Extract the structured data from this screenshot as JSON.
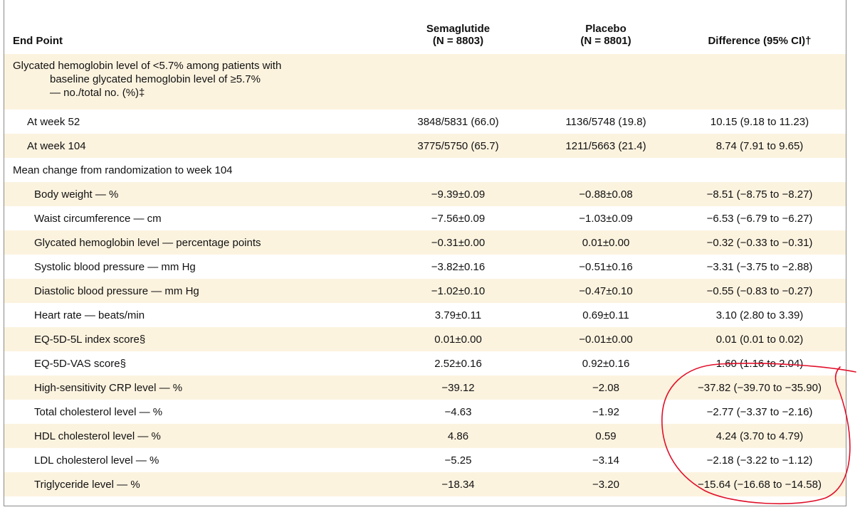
{
  "header": {
    "end_point": "End Point",
    "semaglutide": "Semaglutide",
    "semaglutide_n": "(N = 8803)",
    "placebo": "Placebo",
    "placebo_n": "(N = 8801)",
    "difference": "Difference (95% CI)†"
  },
  "section1": {
    "line1": "Glycated hemoglobin level of <5.7% among patients with",
    "line2": "baseline glycated hemoglobin level of ≥5.7%",
    "line3": "— no./total no. (%)‡",
    "rows": [
      {
        "label": "At week 52",
        "semaglutide": "3848/5831 (66.0)",
        "placebo": "1136/5748 (19.8)",
        "difference": "10.15 (9.18 to 11.23)"
      },
      {
        "label": "At week 104",
        "semaglutide": "3775/5750 (65.7)",
        "placebo": "1211/5663 (21.4)",
        "difference": "8.74 (7.91 to 9.65)"
      }
    ]
  },
  "section2": {
    "title": "Mean change from randomization to week 104",
    "rows": [
      {
        "label": "Body weight — %",
        "semaglutide": "−9.39±0.09",
        "placebo": "−0.88±0.08",
        "difference": "−8.51 (−8.75 to −8.27)"
      },
      {
        "label": "Waist circumference — cm",
        "semaglutide": "−7.56±0.09",
        "placebo": "−1.03±0.09",
        "difference": "−6.53 (−6.79 to −6.27)"
      },
      {
        "label": "Glycated hemoglobin level — percentage points",
        "semaglutide": "−0.31±0.00",
        "placebo": "0.01±0.00",
        "difference": "−0.32 (−0.33 to −0.31)"
      },
      {
        "label": "Systolic blood pressure — mm Hg",
        "semaglutide": "−3.82±0.16",
        "placebo": "−0.51±0.16",
        "difference": "−3.31 (−3.75 to −2.88)"
      },
      {
        "label": "Diastolic blood pressure — mm Hg",
        "semaglutide": "−1.02±0.10",
        "placebo": "−0.47±0.10",
        "difference": "−0.55 (−0.83 to −0.27)"
      },
      {
        "label": "Heart rate — beats/min",
        "semaglutide": "3.79±0.11",
        "placebo": "0.69±0.11",
        "difference": "3.10 (2.80 to 3.39)"
      },
      {
        "label": "EQ-5D-5L index score§",
        "semaglutide": "0.01±0.00",
        "placebo": "−0.01±0.00",
        "difference": "0.01 (0.01 to 0.02)"
      },
      {
        "label": "EQ-5D-VAS score§",
        "semaglutide": "2.52±0.16",
        "placebo": "0.92±0.16",
        "difference": "1.60 (1.16 to 2.04)"
      },
      {
        "label": "High-sensitivity CRP level — %",
        "semaglutide": "−39.12",
        "placebo": "−2.08",
        "difference": "−37.82 (−39.70 to −35.90)"
      },
      {
        "label": "Total cholesterol level — %",
        "semaglutide": "−4.63",
        "placebo": "−1.92",
        "difference": "−2.77 (−3.37 to −2.16)"
      },
      {
        "label": "HDL cholesterol level — %",
        "semaglutide": "4.86",
        "placebo": "0.59",
        "difference": "4.24 (3.70 to 4.79)"
      },
      {
        "label": "LDL cholesterol level — %",
        "semaglutide": "−5.25",
        "placebo": "−3.14",
        "difference": "−2.18 (−3.22 to −1.12)"
      },
      {
        "label": "Triglyceride level — %",
        "semaglutide": "−18.34",
        "placebo": "−3.20",
        "difference": "−15.64 (−16.68 to −14.58)"
      }
    ]
  },
  "annotation": {
    "stroke_color": "#e0102a"
  }
}
